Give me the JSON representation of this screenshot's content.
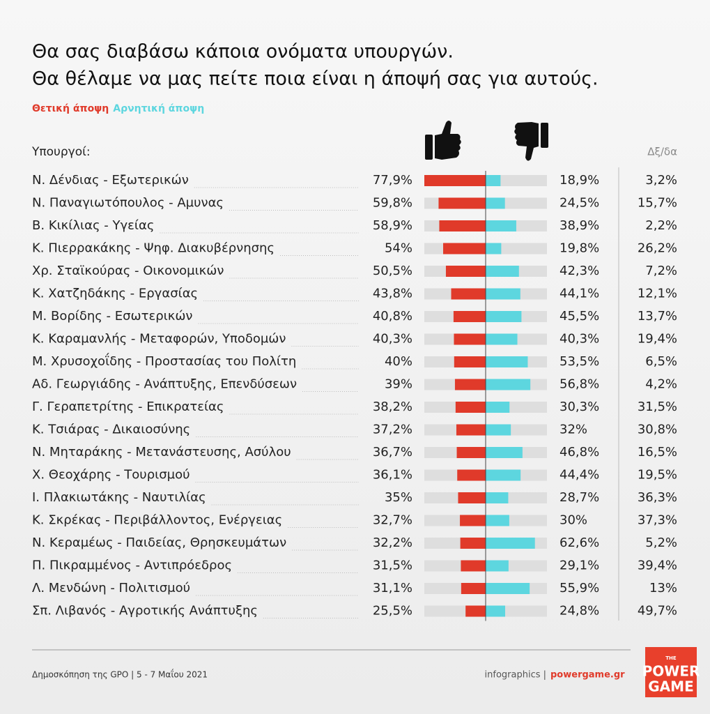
{
  "chart_data": {
    "type": "diverging-bar",
    "title": [
      "Θα σας διαβάσω κάποια ονόματα υπουργών.",
      "Θα θέλαμε να μας πείτε ποια είναι η άποψή σας για αυτούς."
    ],
    "category_header": "Υπουργοί:",
    "categories": [
      "Ν. Δένδιας - Εξωτερικών",
      "Ν. Παναγιωτόπουλος - Αμυνας",
      "Β. Κικίλιας - Υγείας",
      "Κ. Πιερρακάκης - Ψηφ. Διακυβέρνησης",
      "Χρ. Σταϊκούρας - Οικονομικών",
      "Κ. Χατζηδάκης - Εργασίας",
      "Μ. Βορίδης - Εσωτερικών",
      "Κ. Καραμανλής - Μεταφορών, Υποδομών",
      "Μ. Χρυσοχοΐδης - Προστασίας του Πολίτη",
      "Αδ. Γεωργιάδης - Ανάπτυξης, Επενδύσεων",
      "Γ. Γεραπετρίτης - Επικρατείας",
      "Κ. Τσιάρας - Δικαιοσύνης",
      "Ν. Μηταράκης - Μετανάστευσης, Ασύλου",
      "Χ. Θεοχάρης - Τουρισμού",
      "Ι. Πλακιωτάκης - Ναυτιλίας",
      "Κ. Σκρέκας - Περιβάλλοντος, Ενέργειας",
      "Ν. Κεραμέως - Παιδείας, Θρησκευμάτων",
      "Π. Πικραμμένος - Αντιπρόεδρος",
      "Λ. Μενδώνη - Πολιτισμού",
      "Σπ. Λιβανός - Αγροτικής Ανάπτυξης"
    ],
    "series": [
      {
        "name": "Θετική άποψη",
        "color": "#e03a2a",
        "values": [
          77.9,
          59.8,
          58.9,
          54,
          50.5,
          43.8,
          40.8,
          40.3,
          40,
          39,
          38.2,
          37.2,
          36.7,
          36.1,
          35,
          32.7,
          32.2,
          31.5,
          31.1,
          25.5
        ],
        "value_labels": [
          "77,9%",
          "59,8%",
          "58,9%",
          "54%",
          "50,5%",
          "43,8%",
          "40,8%",
          "40,3%",
          "40%",
          "39%",
          "38,2%",
          "37,2%",
          "36,7%",
          "36,1%",
          "35%",
          "32,7%",
          "32,2%",
          "31,5%",
          "31,1%",
          "25,5%"
        ]
      },
      {
        "name": "Αρνητική άποψη",
        "color": "#5dd6df",
        "values": [
          18.9,
          24.5,
          38.9,
          19.8,
          42.3,
          44.1,
          45.5,
          40.3,
          53.5,
          56.8,
          30.3,
          32,
          46.8,
          44.4,
          28.7,
          30,
          62.6,
          29.1,
          55.9,
          24.8
        ],
        "value_labels": [
          "18,9%",
          "24,5%",
          "38,9%",
          "19,8%",
          "42,3%",
          "44,1%",
          "45,5%",
          "40,3%",
          "53,5%",
          "56,8%",
          "30,3%",
          "32%",
          "46,8%",
          "44,4%",
          "28,7%",
          "30%",
          "62,6%",
          "29,1%",
          "55,9%",
          "24,8%"
        ]
      },
      {
        "name": "Δξ/δα",
        "color": "#888888",
        "values": [
          3.2,
          15.7,
          2.2,
          26.2,
          7.2,
          12.1,
          13.7,
          19.4,
          6.5,
          4.2,
          31.5,
          30.8,
          16.5,
          19.5,
          36.3,
          37.3,
          5.2,
          39.4,
          13,
          49.7
        ],
        "value_labels": [
          "3,2%",
          "15,7%",
          "2,2%",
          "26,2%",
          "7,2%",
          "12,1%",
          "13,7%",
          "19,4%",
          "6,5%",
          "4,2%",
          "31,5%",
          "30,8%",
          "16,5%",
          "19,5%",
          "36,3%",
          "37,3%",
          "5,2%",
          "39,4%",
          "13%",
          "49,7%"
        ]
      }
    ],
    "source": "Δημοσκόπηση της GPO | 5 - 7 Μαΐου 2021",
    "credit_label": "infographics |",
    "credit_site": "powergame.gr",
    "logo": [
      "THE",
      "POWER",
      "GAME"
    ]
  }
}
